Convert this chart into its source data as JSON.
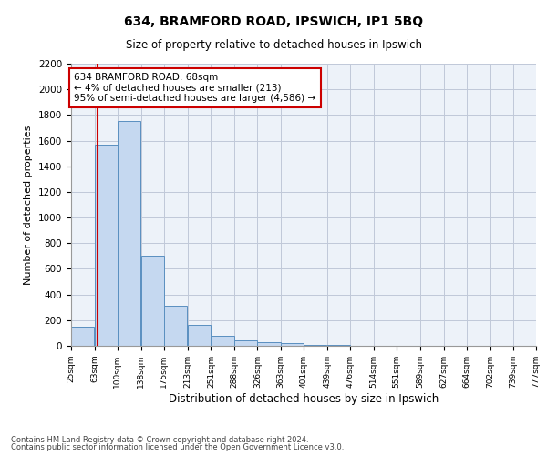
{
  "title1": "634, BRAMFORD ROAD, IPSWICH, IP1 5BQ",
  "title2": "Size of property relative to detached houses in Ipswich",
  "xlabel": "Distribution of detached houses by size in Ipswich",
  "ylabel": "Number of detached properties",
  "footer1": "Contains HM Land Registry data © Crown copyright and database right 2024.",
  "footer2": "Contains public sector information licensed under the Open Government Licence v3.0.",
  "annotation_title": "634 BRAMFORD ROAD: 68sqm",
  "annotation_line1": "← 4% of detached houses are smaller (213)",
  "annotation_line2": "95% of semi-detached houses are larger (4,586) →",
  "property_size": 68,
  "bar_left_edges": [
    25,
    63,
    100,
    138,
    175,
    213,
    251,
    288,
    326,
    363,
    401,
    439,
    476,
    514,
    551,
    589,
    627,
    664,
    702,
    739
  ],
  "bar_heights": [
    150,
    1570,
    1750,
    700,
    310,
    160,
    80,
    40,
    25,
    20,
    10,
    5,
    3,
    2,
    1,
    1,
    1,
    0,
    0,
    0
  ],
  "bin_width": 37,
  "bar_color": "#c5d8f0",
  "bar_edge_color": "#5a8fc0",
  "vline_color": "#cc0000",
  "annotation_box_color": "#cc0000",
  "grid_color": "#c0c8d8",
  "bg_color": "#edf2f9",
  "ylim": [
    0,
    2200
  ],
  "yticks": [
    0,
    200,
    400,
    600,
    800,
    1000,
    1200,
    1400,
    1600,
    1800,
    2000,
    2200
  ],
  "tick_labels": [
    "25sqm",
    "63sqm",
    "100sqm",
    "138sqm",
    "175sqm",
    "213sqm",
    "251sqm",
    "288sqm",
    "326sqm",
    "363sqm",
    "401sqm",
    "439sqm",
    "476sqm",
    "514sqm",
    "551sqm",
    "589sqm",
    "627sqm",
    "664sqm",
    "702sqm",
    "739sqm",
    "777sqm"
  ],
  "figsize": [
    6.0,
    5.0
  ],
  "dpi": 100
}
